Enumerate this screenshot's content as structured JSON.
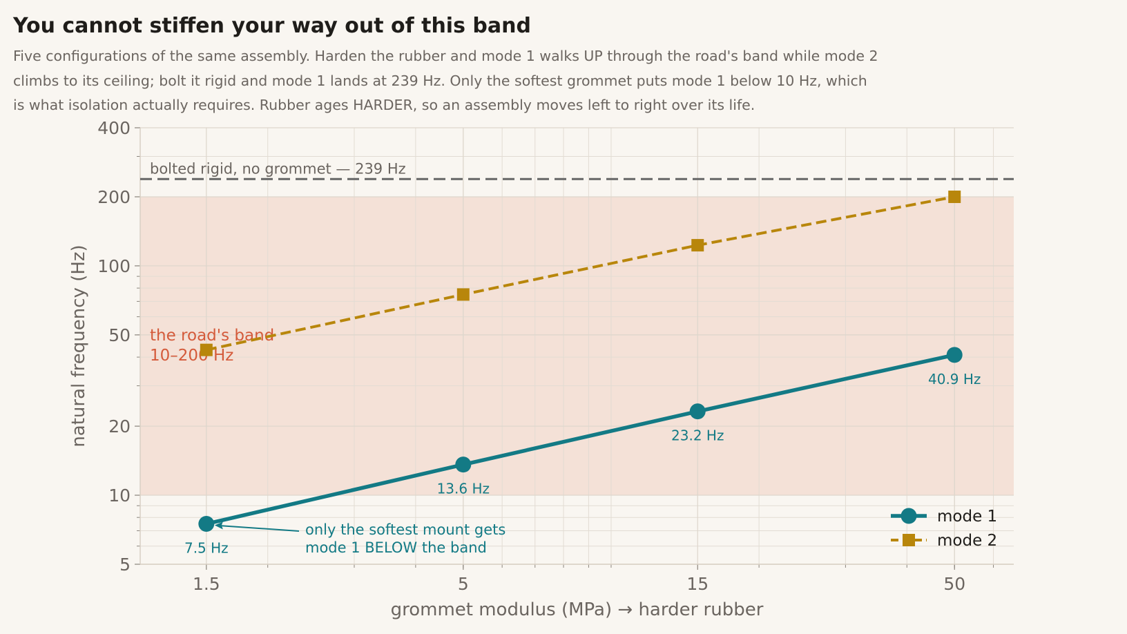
{
  "header": {
    "title": "You cannot stiffen your way out of this band",
    "subtitle_lines": [
      "Five configurations of the same assembly. Harden the rubber and mode 1 walks UP through the road's band while mode 2",
      "climbs to its ceiling; bolt it rigid and mode 1 lands at 239 Hz. Only the softest grommet puts mode 1 below 10 Hz, which",
      "is what isolation actually requires. Rubber ages HARDER, so an assembly moves left to right over its life."
    ]
  },
  "chart_data": {
    "type": "line",
    "title": "You cannot stiffen your way out of this band",
    "xlabel": "grommet modulus  (MPa)   →  harder rubber",
    "ylabel": "natural frequency  (Hz)",
    "x_scale": "log",
    "y_scale": "log",
    "xlim": [
      1.1,
      66
    ],
    "ylim": [
      5,
      400
    ],
    "x_ticks": [
      1.5,
      5,
      15,
      50
    ],
    "x_tick_labels": [
      "1.5",
      "5",
      "15",
      "50"
    ],
    "y_ticks": [
      5,
      10,
      20,
      50,
      100,
      200,
      400
    ],
    "y_tick_labels": [
      "5",
      "10",
      "20",
      "50",
      "100",
      "200",
      "400"
    ],
    "grid": true,
    "legend_position": "bottom-right",
    "x": [
      1.5,
      5,
      15,
      50
    ],
    "series": [
      {
        "name": "mode 1",
        "x": [
          1.5,
          5,
          15,
          50
        ],
        "values": [
          7.5,
          13.6,
          23.2,
          40.9
        ],
        "point_labels": [
          "7.5 Hz",
          "13.6 Hz",
          "23.2 Hz",
          "40.9 Hz"
        ],
        "color": "#137a85",
        "line_style": "solid",
        "marker": "circle"
      },
      {
        "name": "mode 2",
        "x": [
          1.5,
          5,
          15,
          50
        ],
        "values": [
          43,
          75,
          123,
          200
        ],
        "color": "#b8860b",
        "line_style": "dashed",
        "marker": "square"
      }
    ],
    "band": {
      "y_range": [
        10,
        200
      ],
      "label_lines": [
        "the road's band",
        "10–200 Hz"
      ],
      "color": "#f4e1d7",
      "label_color": "#d45a3a"
    },
    "reference_line": {
      "y": 239,
      "label": "bolted rigid, no grommet — 239 Hz",
      "color": "#666666"
    },
    "annotation": {
      "text_lines": [
        "only the softest mount gets",
        "mode 1 BELOW the band"
      ],
      "points_to": {
        "x": 1.5,
        "y": 7.5
      },
      "color": "#137a85"
    }
  }
}
